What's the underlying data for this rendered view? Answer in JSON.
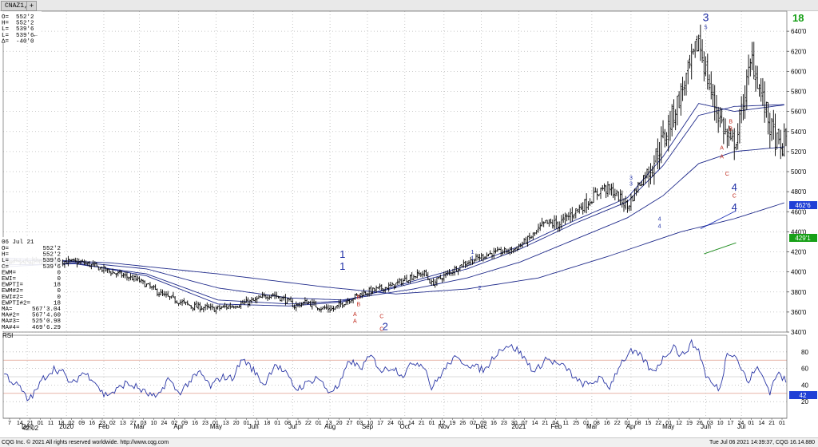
{
  "window": {
    "tab_label": "CNAZ1,D",
    "add_tab_label": "+"
  },
  "quote_box": [
    {
      "k": "O=",
      "v": "552'2"
    },
    {
      "k": "H=",
      "v": "552'2"
    },
    {
      "k": "L=",
      "v": "539'6"
    },
    {
      "k": "L=",
      "v": "539'6←"
    },
    {
      "k": "Δ=",
      "v": "-40'0"
    }
  ],
  "info_panel": {
    "date": "06 Jul 21",
    "rows": [
      {
        "k": "O=",
        "v": "552'2"
      },
      {
        "k": "H=",
        "v": "552'2"
      },
      {
        "k": "L=",
        "v": "539'6"
      },
      {
        "k": "C=",
        "v": "539'6"
      },
      {
        "k": "EWM=",
        "v": "0"
      },
      {
        "k": "EWI=",
        "v": "0"
      },
      {
        "k": "EWPTI=",
        "v": "18"
      },
      {
        "k": "EWM#2=",
        "v": "0"
      },
      {
        "k": "EWI#2=",
        "v": "0"
      },
      {
        "k": "EWPTI#2=",
        "v": "18"
      },
      {
        "k": "MA=",
        "v": "567'3.04"
      },
      {
        "k": "MA#2=",
        "v": "567'4.60"
      },
      {
        "k": "MA#3=",
        "v": "525'0.98"
      },
      {
        "k": "MA#4=",
        "v": "469'6.29"
      }
    ]
  },
  "colors": {
    "bars": "#000000",
    "ma": "#1f2a8a",
    "wave": "#1f2fa6",
    "abc": "#c0291c",
    "channel": "#2235b8",
    "green": "#1a8a1a",
    "rsi": "#2b37a6",
    "rsi_mid": "#c85a3a",
    "badge_blue": "#1f3fd6",
    "badge_green": "#17a017"
  },
  "rsi_panel": {
    "title": "RSI",
    "last_value_label": "42.02",
    "current_badge": "42"
  },
  "price_badges": {
    "blue": "462'6",
    "green": "429'1"
  },
  "ew_count_label": "18",
  "footer": {
    "left": "CQG Inc. © 2021 All rights reserved worldwide. http://www.cqg.com",
    "right": "Tue Jul 06 2021 14:39:37, CQG 16.14.880"
  },
  "chart_data": {
    "type": "ohlc",
    "symbol": "CNAZ1",
    "interval": "Daily",
    "ylim": [
      340,
      660
    ],
    "yticks": [
      {
        "v": 340,
        "label": "340'0"
      },
      {
        "v": 360,
        "label": "360'0"
      },
      {
        "v": 380,
        "label": "380'0"
      },
      {
        "v": 400,
        "label": "400'0"
      },
      {
        "v": 420,
        "label": "420'0"
      },
      {
        "v": 440,
        "label": "440'0"
      },
      {
        "v": 460,
        "label": "460'0"
      },
      {
        "v": 480,
        "label": "480'0"
      },
      {
        "v": 500,
        "label": "500'0"
      },
      {
        "v": 520,
        "label": "520'0"
      },
      {
        "v": 540,
        "label": "540'0"
      },
      {
        "v": 560,
        "label": "560'0"
      },
      {
        "v": 580,
        "label": "580'0"
      },
      {
        "v": 600,
        "label": "600'0"
      },
      {
        "v": 620,
        "label": "620'0"
      },
      {
        "v": 640,
        "label": "640'0"
      }
    ],
    "rsi_ylim": [
      0,
      100
    ],
    "rsi_yticks": [
      {
        "v": 20,
        "label": "20"
      },
      {
        "v": 40,
        "label": "40"
      },
      {
        "v": 60,
        "label": "60"
      },
      {
        "v": 80,
        "label": "80"
      }
    ],
    "rsi_levels": [
      30,
      50,
      70
    ],
    "n_bars": 440,
    "month_labels": [
      {
        "i": 13,
        "t": "Dec"
      },
      {
        "i": 35,
        "t": "2020"
      },
      {
        "i": 56,
        "t": "Feb"
      },
      {
        "i": 76,
        "t": "Mar"
      },
      {
        "i": 98,
        "t": "Apr"
      },
      {
        "i": 119,
        "t": "May"
      },
      {
        "i": 140,
        "t": "Jun"
      },
      {
        "i": 162,
        "t": "Jul"
      },
      {
        "i": 183,
        "t": "Aug"
      },
      {
        "i": 204,
        "t": "Sep"
      },
      {
        "i": 225,
        "t": "Oct"
      },
      {
        "i": 247,
        "t": "Nov"
      },
      {
        "i": 268,
        "t": "Dec"
      },
      {
        "i": 289,
        "t": "2021"
      },
      {
        "i": 310,
        "t": "Feb"
      },
      {
        "i": 330,
        "t": "Mar"
      },
      {
        "i": 352,
        "t": "Apr"
      },
      {
        "i": 373,
        "t": "May"
      },
      {
        "i": 394,
        "t": "Jun"
      },
      {
        "i": 414,
        "t": "Jul"
      }
    ],
    "day_labels": "7 14 21 01 11 18 02 09 16 23 02 13 27 03 10 24 02 09 16 23 01 13 20 01 11 18 01 08 15 22 01 13 20 27 03 10 17 24 01 14 21 01 12 19 26 02 09 16 23 30 07 14 21 04 11 25 01 08 16 22 01 08 15 22 01 12 19 26 03 10 17 24 01 14 21 01",
    "close_keypoints": [
      [
        0,
        408
      ],
      [
        18,
        410
      ],
      [
        30,
        411
      ],
      [
        45,
        409
      ],
      [
        60,
        400
      ],
      [
        75,
        392
      ],
      [
        90,
        376
      ],
      [
        105,
        366
      ],
      [
        118,
        363
      ],
      [
        130,
        367
      ],
      [
        140,
        371
      ],
      [
        150,
        378
      ],
      [
        158,
        372
      ],
      [
        163,
        366
      ],
      [
        170,
        370
      ],
      [
        178,
        364
      ],
      [
        185,
        363
      ],
      [
        192,
        371
      ],
      [
        200,
        378
      ],
      [
        208,
        382
      ],
      [
        218,
        386
      ],
      [
        228,
        395
      ],
      [
        236,
        399
      ],
      [
        240,
        388
      ],
      [
        246,
        395
      ],
      [
        258,
        408
      ],
      [
        272,
        418
      ],
      [
        286,
        422
      ],
      [
        296,
        435
      ],
      [
        304,
        448
      ],
      [
        312,
        448
      ],
      [
        320,
        460
      ],
      [
        328,
        470
      ],
      [
        336,
        484
      ],
      [
        342,
        480
      ],
      [
        350,
        465
      ],
      [
        356,
        486
      ],
      [
        364,
        508
      ],
      [
        372,
        540
      ],
      [
        380,
        578
      ],
      [
        386,
        608
      ],
      [
        390,
        632
      ],
      [
        394,
        600
      ],
      [
        398,
        572
      ],
      [
        403,
        548
      ],
      [
        408,
        525
      ],
      [
        412,
        538
      ],
      [
        416,
        580
      ],
      [
        420,
        612
      ],
      [
        425,
        578
      ],
      [
        430,
        545
      ],
      [
        436,
        520
      ],
      [
        440,
        540
      ]
    ],
    "rsi_keypoints": [
      [
        0,
        55
      ],
      [
        4,
        45
      ],
      [
        9,
        37
      ],
      [
        13,
        22
      ],
      [
        17,
        30
      ],
      [
        22,
        48
      ],
      [
        28,
        60
      ],
      [
        33,
        55
      ],
      [
        38,
        40
      ],
      [
        44,
        55
      ],
      [
        50,
        48
      ],
      [
        56,
        28
      ],
      [
        62,
        32
      ],
      [
        68,
        42
      ],
      [
        74,
        38
      ],
      [
        80,
        30
      ],
      [
        86,
        24
      ],
      [
        92,
        48
      ],
      [
        98,
        30
      ],
      [
        104,
        44
      ],
      [
        110,
        55
      ],
      [
        116,
        38
      ],
      [
        122,
        50
      ],
      [
        128,
        48
      ],
      [
        134,
        72
      ],
      [
        140,
        58
      ],
      [
        146,
        40
      ],
      [
        152,
        66
      ],
      [
        158,
        54
      ],
      [
        164,
        35
      ],
      [
        170,
        42
      ],
      [
        176,
        50
      ],
      [
        182,
        32
      ],
      [
        188,
        38
      ],
      [
        194,
        70
      ],
      [
        200,
        60
      ],
      [
        206,
        75
      ],
      [
        212,
        57
      ],
      [
        218,
        62
      ],
      [
        224,
        52
      ],
      [
        230,
        68
      ],
      [
        236,
        64
      ],
      [
        240,
        36
      ],
      [
        246,
        55
      ],
      [
        252,
        72
      ],
      [
        258,
        68
      ],
      [
        264,
        62
      ],
      [
        270,
        58
      ],
      [
        276,
        78
      ],
      [
        282,
        88
      ],
      [
        288,
        83
      ],
      [
        294,
        67
      ],
      [
        298,
        55
      ],
      [
        304,
        72
      ],
      [
        310,
        66
      ],
      [
        316,
        60
      ],
      [
        322,
        44
      ],
      [
        328,
        40
      ],
      [
        334,
        48
      ],
      [
        340,
        38
      ],
      [
        346,
        66
      ],
      [
        352,
        80
      ],
      [
        358,
        74
      ],
      [
        364,
        55
      ],
      [
        370,
        72
      ],
      [
        376,
        88
      ],
      [
        380,
        74
      ],
      [
        386,
        90
      ],
      [
        390,
        82
      ],
      [
        394,
        52
      ],
      [
        398,
        40
      ],
      [
        402,
        35
      ],
      [
        406,
        80
      ],
      [
        410,
        78
      ],
      [
        414,
        60
      ],
      [
        418,
        42
      ],
      [
        422,
        62
      ],
      [
        426,
        50
      ],
      [
        430,
        32
      ],
      [
        434,
        55
      ],
      [
        440,
        42
      ]
    ],
    "ma_series": [
      {
        "name": "MA",
        "points": [
          [
            0,
            405
          ],
          [
            40,
            409
          ],
          [
            80,
            396
          ],
          [
            120,
            368
          ],
          [
            160,
            366
          ],
          [
            190,
            370
          ],
          [
            230,
            391
          ],
          [
            260,
            406
          ],
          [
            290,
            426
          ],
          [
            320,
            451
          ],
          [
            350,
            474
          ],
          [
            370,
            515
          ],
          [
            390,
            568
          ],
          [
            410,
            560
          ],
          [
            440,
            567
          ]
        ]
      },
      {
        "name": "MA#2",
        "points": [
          [
            0,
            407
          ],
          [
            40,
            408
          ],
          [
            80,
            398
          ],
          [
            120,
            372
          ],
          [
            160,
            368
          ],
          [
            190,
            371
          ],
          [
            230,
            389
          ],
          [
            260,
            403
          ],
          [
            290,
            423
          ],
          [
            320,
            448
          ],
          [
            350,
            470
          ],
          [
            370,
            506
          ],
          [
            390,
            556
          ],
          [
            410,
            565
          ],
          [
            440,
            567
          ]
        ]
      },
      {
        "name": "MA#3",
        "points": [
          [
            0,
            412
          ],
          [
            40,
            410
          ],
          [
            80,
            403
          ],
          [
            120,
            384
          ],
          [
            160,
            374
          ],
          [
            190,
            372
          ],
          [
            230,
            383
          ],
          [
            260,
            394
          ],
          [
            290,
            410
          ],
          [
            320,
            432
          ],
          [
            350,
            454
          ],
          [
            370,
            476
          ],
          [
            390,
            508
          ],
          [
            410,
            520
          ],
          [
            440,
            525
          ]
        ]
      },
      {
        "name": "MA#4",
        "points": [
          [
            0,
            414
          ],
          [
            60,
            409
          ],
          [
            120,
            398
          ],
          [
            180,
            385
          ],
          [
            220,
            378
          ],
          [
            260,
            383
          ],
          [
            300,
            394
          ],
          [
            340,
            416
          ],
          [
            380,
            440
          ],
          [
            410,
            453
          ],
          [
            440,
            470
          ]
        ]
      }
    ],
    "wave_labels": [
      {
        "i": 190,
        "p": 414,
        "t": "1",
        "c": "wave",
        "s": 13
      },
      {
        "i": 190,
        "p": 402,
        "t": "1",
        "c": "wave",
        "s": 13
      },
      {
        "i": 214,
        "p": 342,
        "t": "2",
        "c": "wave",
        "s": 13
      },
      {
        "i": 263,
        "p": 418,
        "t": "1",
        "c": "wave",
        "s": 7
      },
      {
        "i": 263,
        "p": 412,
        "t": "1",
        "c": "wave",
        "s": 7
      },
      {
        "i": 267,
        "p": 382,
        "t": "2",
        "c": "wave",
        "s": 7
      },
      {
        "i": 352,
        "p": 492,
        "t": "3",
        "c": "wave",
        "s": 7
      },
      {
        "i": 352,
        "p": 486,
        "t": "3",
        "c": "wave",
        "s": 7
      },
      {
        "i": 368,
        "p": 451,
        "t": "4",
        "c": "wave",
        "s": 7
      },
      {
        "i": 368,
        "p": 444,
        "t": "4",
        "c": "wave",
        "s": 7
      },
      {
        "i": 394,
        "p": 650,
        "t": "3",
        "c": "wave",
        "s": 14
      },
      {
        "i": 394,
        "p": 642,
        "t": "5",
        "c": "wave",
        "s": 7
      },
      {
        "i": 408,
        "p": 548,
        "t": "B",
        "c": "abc",
        "s": 7
      },
      {
        "i": 408,
        "p": 541,
        "t": "B",
        "c": "abc",
        "s": 7
      },
      {
        "i": 403,
        "p": 522,
        "t": "A",
        "c": "abc",
        "s": 7
      },
      {
        "i": 403,
        "p": 513,
        "t": "A",
        "c": "abc",
        "s": 7
      },
      {
        "i": 406,
        "p": 496,
        "t": "C",
        "c": "abc",
        "s": 7
      },
      {
        "i": 410,
        "p": 481,
        "t": "4",
        "c": "wave",
        "s": 13
      },
      {
        "i": 410,
        "p": 474,
        "t": "C",
        "c": "abc",
        "s": 7
      },
      {
        "i": 410,
        "p": 461,
        "t": "4",
        "c": "wave",
        "s": 13
      },
      {
        "i": 199,
        "p": 373,
        "t": "B",
        "c": "abc",
        "s": 7
      },
      {
        "i": 199,
        "p": 366,
        "t": "B",
        "c": "abc",
        "s": 7
      },
      {
        "i": 197,
        "p": 356,
        "t": "A",
        "c": "abc",
        "s": 7
      },
      {
        "i": 197,
        "p": 349,
        "t": "A",
        "c": "abc",
        "s": 7
      },
      {
        "i": 212,
        "p": 354,
        "t": "C",
        "c": "abc",
        "s": 7
      },
      {
        "i": 212,
        "p": 341,
        "t": "C",
        "c": "abc",
        "s": 7
      }
    ],
    "channel_lines": [
      {
        "from": [
          391,
          443
        ],
        "to": [
          411,
          461
        ],
        "c": "channel"
      },
      {
        "from": [
          393,
          418
        ],
        "to": [
          411,
          429
        ],
        "c": "green"
      }
    ]
  }
}
